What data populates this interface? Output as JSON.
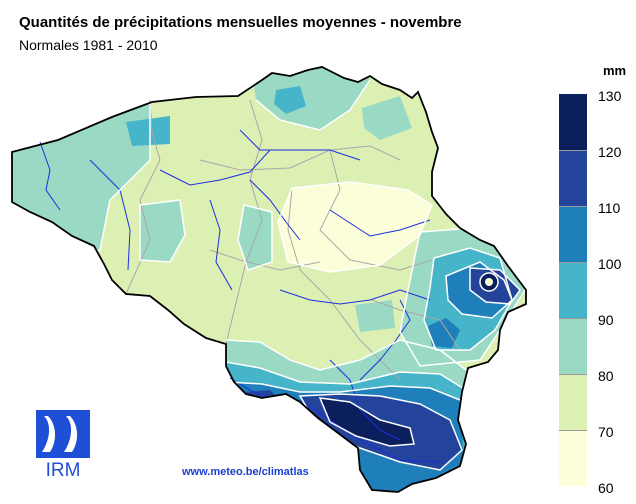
{
  "header": {
    "title": "Quantités de précipitations mensuelles moyennes - novembre",
    "subtitle": "Normales 1981 - 2010"
  },
  "legend": {
    "unit": "mm",
    "ticks": [
      "130",
      "120",
      "110",
      "100",
      "90",
      "80",
      "70",
      "60"
    ],
    "colors": [
      "#0b1f5c",
      "#24449c",
      "#1f7fba",
      "#46b5c9",
      "#9ad9c4",
      "#dcf0b4",
      "#fbfed8"
    ]
  },
  "logo": {
    "text": "IRM"
  },
  "footer": {
    "url": "www.meteo.be/climatlas"
  }
}
